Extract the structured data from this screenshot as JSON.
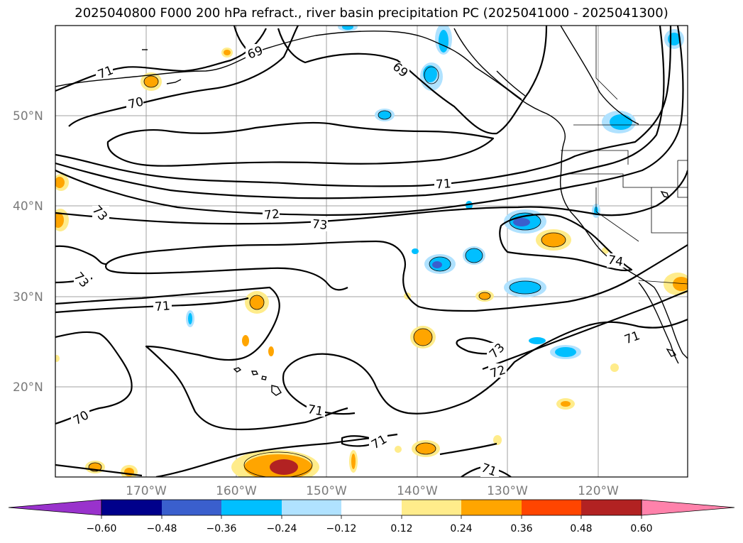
{
  "title": "2025040800 F000 200 hPa refract., river basin precipitation PC (2025041000 - 2025041300)",
  "lat_labels": [
    "50°N",
    "40°N",
    "30°N",
    "20°N"
  ],
  "lon_labels": [
    "170°W",
    "160°W",
    "150°W",
    "140°W",
    "130°W",
    "120°W"
  ],
  "contour_labels": [
    "69",
    "69",
    "71",
    "70",
    "71",
    "72",
    "73",
    "73",
    "73",
    "74",
    "71",
    "71",
    "71",
    "71",
    "73",
    "72",
    "71",
    "70"
  ],
  "colorbar": {
    "ticks": [
      "−0.60",
      "−0.48",
      "−0.36",
      "−0.24",
      "−0.12",
      "0.12",
      "0.24",
      "0.36",
      "0.48",
      "0.60"
    ],
    "colors": [
      "#9932cc",
      "#00008b",
      "#3a5fcd",
      "#00bfff",
      "#b0e2ff",
      "#ffffff",
      "#ffec8b",
      "#ffa500",
      "#ff4500",
      "#b22222",
      "#ff82ab",
      "#ff82ab"
    ]
  },
  "shading_colors": {
    "neg_light": "#b0e2ff",
    "neg_mid": "#00bfff",
    "neg_strong": "#3a5fcd",
    "pos_light": "#ffec8b",
    "pos_mid": "#ffa500",
    "pos_strong": "#b22222"
  }
}
